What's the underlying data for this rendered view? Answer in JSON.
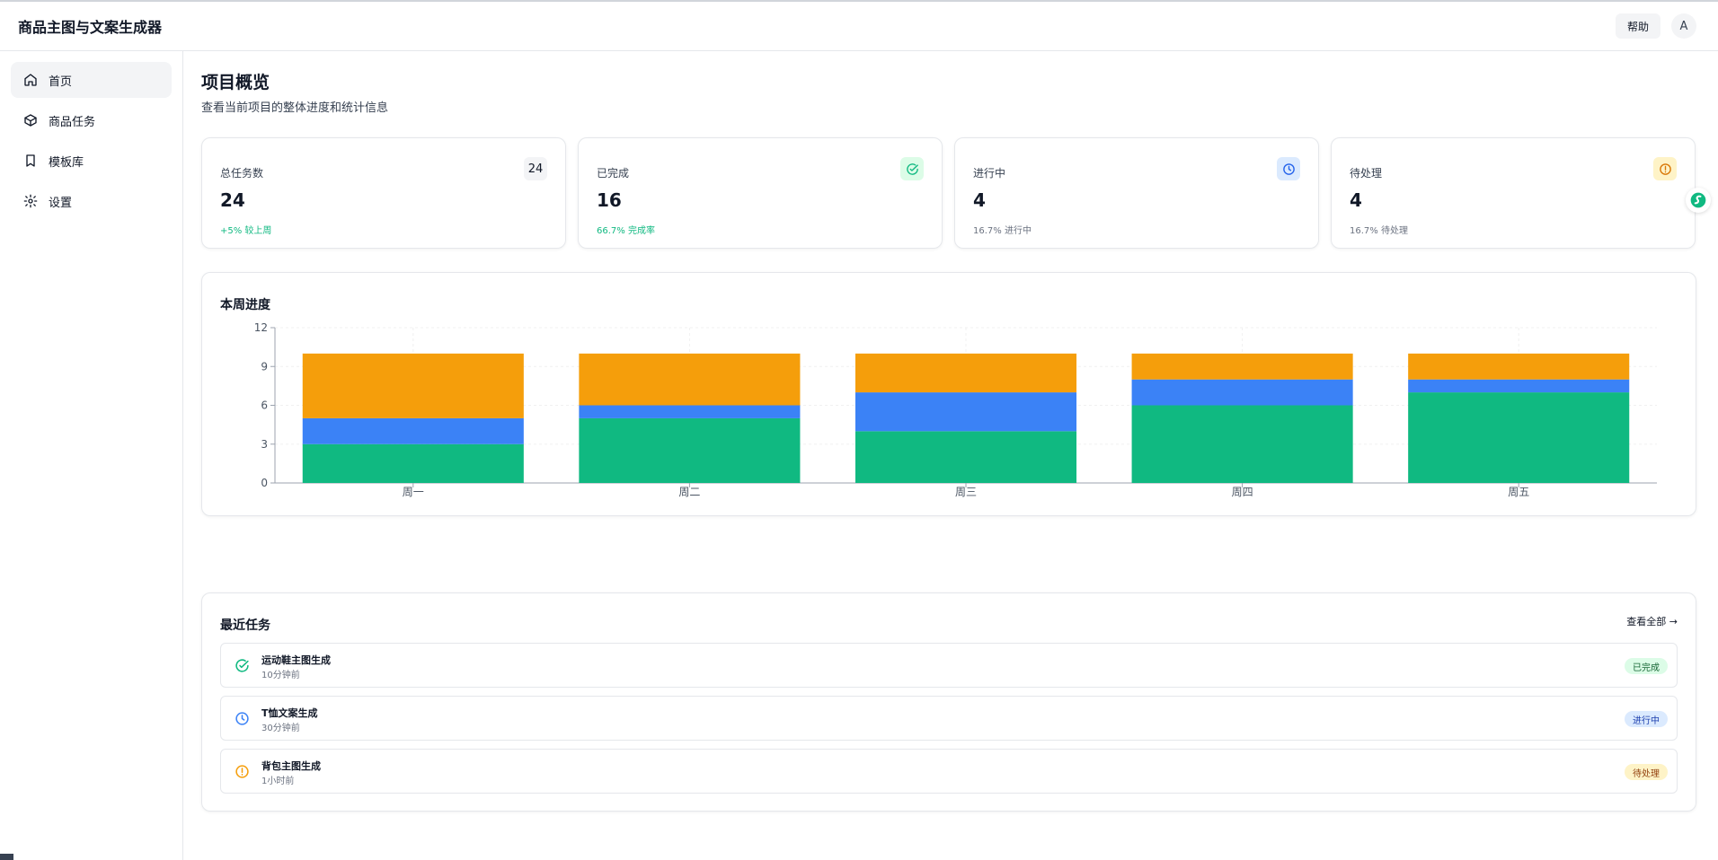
{
  "header": {
    "app_title": "商品主图与文案生成器",
    "help_label": "帮助",
    "avatar_initial": "A"
  },
  "sidebar": {
    "items": [
      {
        "label": "首页",
        "icon": "home-icon",
        "active": true
      },
      {
        "label": "商品任务",
        "icon": "box-icon",
        "active": false
      },
      {
        "label": "模板库",
        "icon": "bookmark-icon",
        "active": false
      },
      {
        "label": "设置",
        "icon": "gear-icon",
        "active": false
      }
    ]
  },
  "main": {
    "title": "项目概览",
    "subtitle": "查看当前项目的整体进度和统计信息",
    "stats": [
      {
        "label": "总任务数",
        "value": "24",
        "badge": "24",
        "note": "+5% 较上周",
        "note_color": "#10b981",
        "badge_bg": "#f3f4f6"
      },
      {
        "label": "已完成",
        "value": "16",
        "badge_icon": "check-circle-icon",
        "note": "66.7% 完成率",
        "note_color": "#10b981",
        "badge_bg": "#dcfce7"
      },
      {
        "label": "进行中",
        "value": "4",
        "badge_icon": "clock-icon",
        "note": "16.7% 进行中",
        "note_color": "#6b7280",
        "badge_bg": "#dbeafe"
      },
      {
        "label": "待处理",
        "value": "4",
        "badge_icon": "alert-circle-icon",
        "note": "16.7% 待处理",
        "note_color": "#6b7280",
        "badge_bg": "#fef3c7"
      }
    ],
    "chart_title": "本周进度",
    "tasks_title": "最近任务",
    "view_all_label": "查看全部 →",
    "tasks": [
      {
        "name": "运动鞋主图生成",
        "time": "10分钟前",
        "status": "已完成",
        "icon": "check-circle-icon",
        "icon_color": "#10b981",
        "badge_bg": "#dcfce7",
        "badge_color": "#166534"
      },
      {
        "name": "T恤文案生成",
        "time": "30分钟前",
        "status": "进行中",
        "icon": "clock-icon",
        "icon_color": "#3b82f6",
        "badge_bg": "#dbeafe",
        "badge_color": "#1e40af"
      },
      {
        "name": "背包主图生成",
        "time": "1小时前",
        "status": "待处理",
        "icon": "alert-circle-icon",
        "icon_color": "#f59e0b",
        "badge_bg": "#fef3c7",
        "badge_color": "#92400e"
      }
    ]
  },
  "chart_data": {
    "type": "bar",
    "stacked": true,
    "categories": [
      "周一",
      "周二",
      "周三",
      "周四",
      "周五"
    ],
    "series": [
      {
        "color": "#10b981",
        "values": [
          3,
          5,
          4,
          6,
          7
        ]
      },
      {
        "color": "#3b82f6",
        "values": [
          2,
          1,
          3,
          2,
          1
        ]
      },
      {
        "color": "#f59e0b",
        "values": [
          5,
          4,
          3,
          2,
          2
        ]
      }
    ],
    "ylim": [
      0,
      12
    ],
    "yticks": [
      "0",
      "3",
      "6",
      "9",
      "12"
    ],
    "grid": true,
    "legend": "none"
  }
}
